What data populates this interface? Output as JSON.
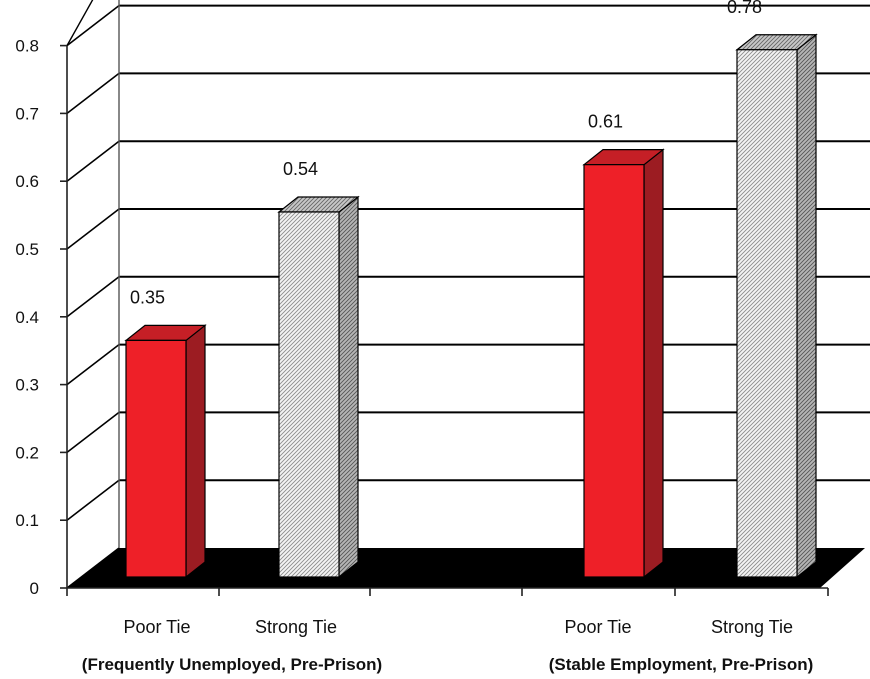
{
  "chart_data": {
    "type": "bar",
    "style": "3d-clustered",
    "title": "",
    "xlabel": "",
    "ylabel": "",
    "ylim": [
      0,
      0.8
    ],
    "yticks": [
      "0",
      "0.1",
      "0.2",
      "0.3",
      "0.4",
      "0.5",
      "0.6",
      "0.7",
      "0.8"
    ],
    "grid": true,
    "legend": "none",
    "groups": [
      {
        "label": "(Frequently Unemployed, Pre-Prison)",
        "bars": [
          {
            "category": "Poor Tie",
            "value": 0.35,
            "label": "0.35",
            "fill": "solid",
            "color": "#ee2028"
          },
          {
            "category": "Strong Tie",
            "value": 0.54,
            "label": "0.54",
            "fill": "hatched",
            "color": "#d9d9d9"
          }
        ]
      },
      {
        "label": "(Stable Employment, Pre-Prison)",
        "bars": [
          {
            "category": "Poor Tie",
            "value": 0.61,
            "label": "0.61",
            "fill": "solid",
            "color": "#ee2028"
          },
          {
            "category": "Strong Tie",
            "value": 0.78,
            "label": "0.78",
            "fill": "hatched",
            "color": "#d9d9d9"
          }
        ]
      }
    ],
    "colors": {
      "poor_front": "#ee2028",
      "poor_side": "#9c1c22",
      "poor_top": "#c51f26",
      "strong_front": "#eeeeee",
      "strong_side": "#8a8a8a",
      "strong_top": "#a8a8a8",
      "floor": "#000000",
      "gridline": "#000000"
    }
  }
}
